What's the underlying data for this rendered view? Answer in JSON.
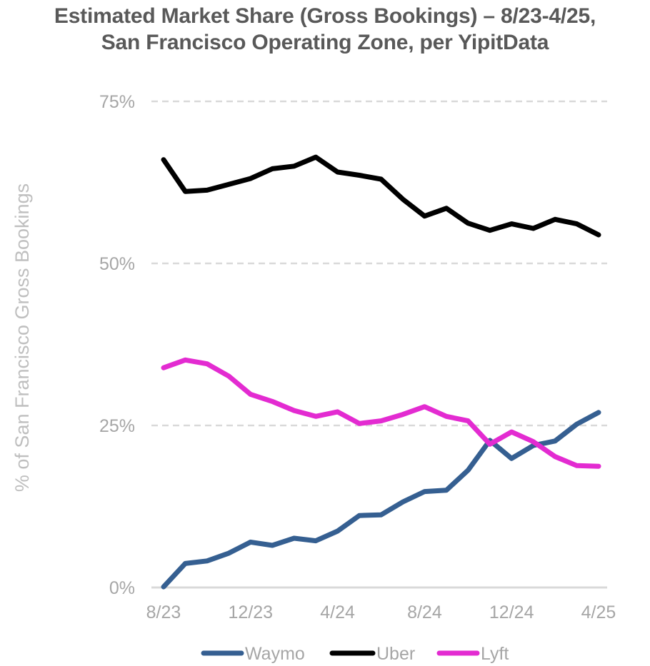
{
  "chart_data": {
    "type": "line",
    "title_lines": [
      "Estimated Market Share (Gross Bookings) – 8/23-4/25,",
      "San Francisco Operating Zone, per YipitData"
    ],
    "xlabel": "",
    "ylabel": "% of San Francisco Gross Bookings",
    "ylim": [
      0,
      75
    ],
    "yticks": [
      0,
      25,
      50,
      75
    ],
    "ytick_labels": [
      "0%",
      "25%",
      "50%",
      "75%"
    ],
    "x": [
      "8/23",
      "9/23",
      "10/23",
      "11/23",
      "12/23",
      "1/24",
      "2/24",
      "3/24",
      "4/24",
      "5/24",
      "6/24",
      "7/24",
      "8/24",
      "9/24",
      "10/24",
      "11/24",
      "12/24",
      "1/25",
      "2/25",
      "3/25",
      "4/25"
    ],
    "xtick_labels": [
      "8/23",
      "12/23",
      "4/24",
      "8/24",
      "12/24",
      "4/25"
    ],
    "xtick_indices": [
      0,
      4,
      8,
      12,
      16,
      20
    ],
    "grid": "horizontal-dashed",
    "legend_position": "bottom",
    "series": [
      {
        "name": "Waymo",
        "color": "#355f91",
        "values": [
          0.1,
          3.7,
          4.1,
          5.3,
          7.0,
          6.5,
          7.6,
          7.2,
          8.7,
          11.1,
          11.2,
          13.2,
          14.8,
          15.0,
          18.1,
          22.7,
          19.9,
          21.9,
          22.6,
          25.2,
          27.0
        ]
      },
      {
        "name": "Uber",
        "color": "#000000",
        "values": [
          66.0,
          61.1,
          61.3,
          62.2,
          63.1,
          64.6,
          65.0,
          66.4,
          64.1,
          63.6,
          63.0,
          59.9,
          57.3,
          58.5,
          56.2,
          55.1,
          56.1,
          55.4,
          56.8,
          56.1,
          54.4
        ]
      },
      {
        "name": "Lyft",
        "color": "#e32bd1",
        "values": [
          33.9,
          35.1,
          34.5,
          32.6,
          29.8,
          28.7,
          27.3,
          26.4,
          27.1,
          25.3,
          25.7,
          26.7,
          27.9,
          26.4,
          25.7,
          22.1,
          24.0,
          22.5,
          20.2,
          18.8,
          18.7
        ]
      }
    ]
  }
}
